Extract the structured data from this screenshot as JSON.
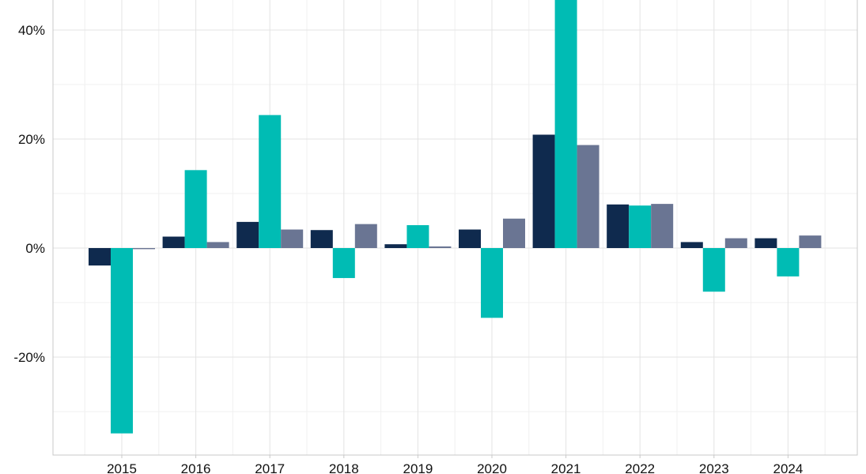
{
  "chart_data": {
    "type": "bar",
    "title": "",
    "xlabel": "",
    "ylabel": "",
    "categories": [
      "2015",
      "2016",
      "2017",
      "2018",
      "2019",
      "2020",
      "2021",
      "2022",
      "2023",
      "2024"
    ],
    "series": [
      {
        "color": "#0f2a4e",
        "values": [
          -3.2,
          2.1,
          4.8,
          3.3,
          0.7,
          3.4,
          20.8,
          8.0,
          1.1,
          1.8
        ]
      },
      {
        "color": "#00bcb4",
        "values": [
          -34.0,
          14.3,
          24.4,
          -5.5,
          4.2,
          -12.8,
          49.0,
          7.8,
          -8.0,
          -5.2
        ]
      },
      {
        "color": "#6a7593",
        "values": [
          -0.2,
          1.1,
          3.4,
          4.4,
          0.3,
          5.4,
          18.9,
          8.1,
          1.8,
          2.3
        ]
      }
    ],
    "ylim": [
      -38,
      45
    ],
    "yticks": [
      -20,
      0,
      20,
      40
    ],
    "ytick_labels": [
      "-20%",
      "0%",
      "20%",
      "40%"
    ],
    "legend": "none",
    "grid": true
  }
}
